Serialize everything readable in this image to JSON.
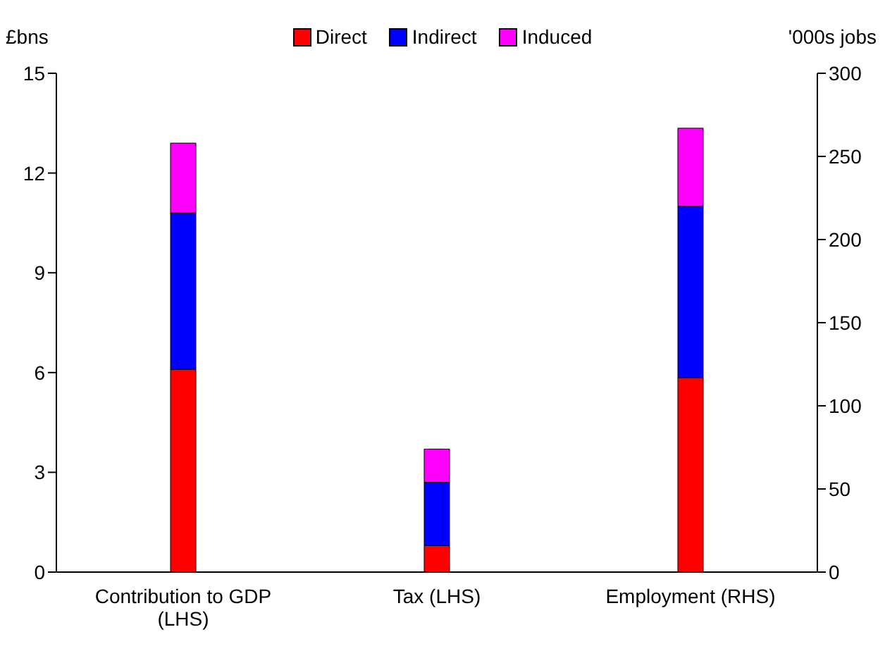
{
  "chart_data": {
    "type": "bar",
    "stacked": true,
    "ylabel": "£bns",
    "y2label": "'000s jobs",
    "categories": [
      "Contribution to GDP (LHS)",
      "Tax (LHS)",
      "Employment (RHS)"
    ],
    "series": [
      {
        "name": "Direct",
        "color": "#ff0000",
        "values": [
          6.1,
          0.8,
          null
        ]
      },
      {
        "name": "Indirect",
        "color": "#0000ff",
        "values": [
          4.7,
          1.9,
          null
        ]
      },
      {
        "name": "Induced",
        "color": "#ff00ff",
        "values": [
          2.1,
          1.0,
          null
        ]
      },
      {
        "color": "#ff0000",
        "axis": "y2",
        "values": [
          null,
          null,
          117
        ]
      },
      {
        "color": "#0000ff",
        "axis": "y2",
        "values": [
          null,
          null,
          103
        ]
      },
      {
        "color": "#ff00ff",
        "axis": "y2",
        "values": [
          null,
          null,
          47
        ]
      }
    ],
    "ylim": [
      0,
      15
    ],
    "yticks": [
      0,
      3,
      6,
      9,
      12,
      15
    ],
    "y2lim": [
      0,
      300
    ],
    "y2ticks": [
      0,
      50,
      100,
      150,
      200,
      250,
      300
    ],
    "grid": false,
    "legend": "top"
  }
}
